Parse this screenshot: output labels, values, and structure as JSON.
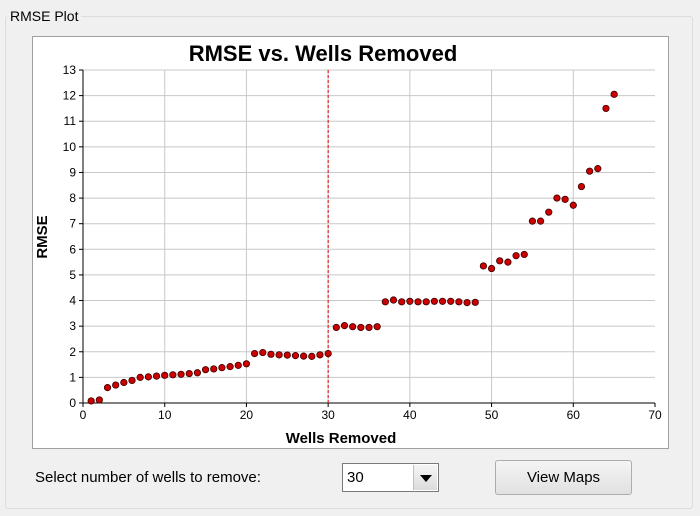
{
  "groupbox": {
    "title": "RMSE Plot"
  },
  "controls": {
    "wells_label": "Select number of wells to remove:",
    "wells_selected": "30",
    "view_maps_label": "View Maps"
  },
  "chart_data": {
    "type": "scatter",
    "title": "RMSE vs. Wells Removed",
    "xlabel": "Wells Removed",
    "ylabel": "RMSE",
    "xlim": [
      0,
      70
    ],
    "ylim": [
      0,
      13
    ],
    "xticks": [
      0,
      10,
      20,
      30,
      40,
      50,
      60,
      70
    ],
    "yticks": [
      0,
      1,
      2,
      3,
      4,
      5,
      6,
      7,
      8,
      9,
      10,
      11,
      12,
      13
    ],
    "grid": true,
    "marker_color": "#cc0000",
    "marker_edge": "#3a0000",
    "cutoff_line": {
      "x": 30,
      "color": "#e00000",
      "style": "dashed"
    },
    "x": [
      1,
      2,
      3,
      4,
      5,
      6,
      7,
      8,
      9,
      10,
      11,
      12,
      13,
      14,
      15,
      16,
      17,
      18,
      19,
      20,
      21,
      22,
      23,
      24,
      25,
      26,
      27,
      28,
      29,
      30,
      31,
      32,
      33,
      34,
      35,
      36,
      37,
      38,
      39,
      40,
      41,
      42,
      43,
      44,
      45,
      46,
      47,
      48,
      49,
      50,
      51,
      52,
      53,
      54,
      55,
      56,
      57,
      58,
      59,
      60,
      61,
      62,
      63,
      64,
      65
    ],
    "y": [
      0.08,
      0.12,
      0.6,
      0.7,
      0.8,
      0.88,
      1.0,
      1.02,
      1.05,
      1.08,
      1.1,
      1.12,
      1.15,
      1.18,
      1.3,
      1.33,
      1.38,
      1.42,
      1.47,
      1.53,
      1.93,
      1.97,
      1.9,
      1.88,
      1.87,
      1.85,
      1.83,
      1.82,
      1.88,
      1.93,
      2.95,
      3.02,
      2.98,
      2.95,
      2.95,
      2.98,
      3.95,
      4.02,
      3.95,
      3.97,
      3.95,
      3.95,
      3.97,
      3.97,
      3.97,
      3.95,
      3.92,
      3.93,
      5.35,
      5.25,
      5.55,
      5.5,
      5.75,
      5.8,
      7.1,
      7.1,
      7.45,
      8.0,
      7.95,
      7.72,
      8.45,
      9.05,
      9.15,
      11.5,
      12.05
    ]
  }
}
